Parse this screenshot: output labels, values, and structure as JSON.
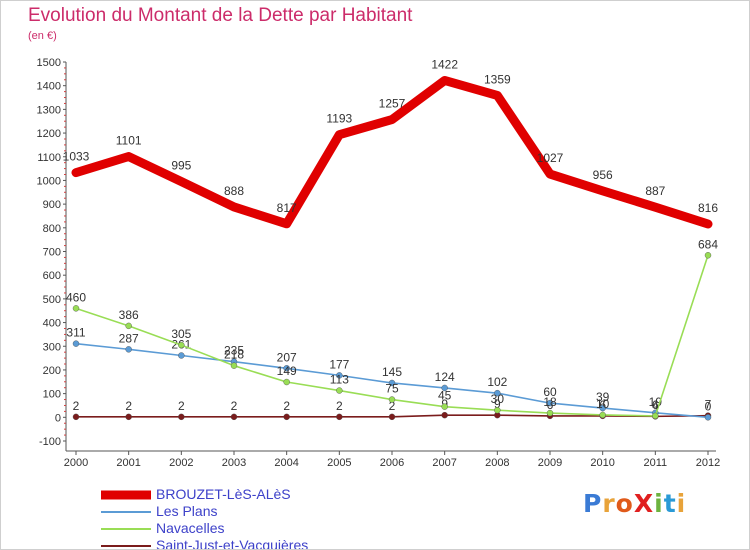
{
  "chart_data": {
    "type": "line",
    "title": "Evolution du Montant de la Dette par Habitant",
    "subtitle": "(en €)",
    "xlabel": "",
    "ylabel": "",
    "x": [
      "2000",
      "2001",
      "2002",
      "2003",
      "2004",
      "2005",
      "2006",
      "2007",
      "2008",
      "2009",
      "2010",
      "2011",
      "2012"
    ],
    "ylim": [
      -100,
      1500
    ],
    "yticks": [
      -100,
      0,
      100,
      200,
      300,
      400,
      500,
      600,
      700,
      800,
      900,
      1000,
      1100,
      1200,
      1300,
      1400,
      1500
    ],
    "grid": false,
    "legend_position": "bottom-left",
    "series": [
      {
        "name": "BROUZET-LèS-ALèS",
        "color": "#e00000",
        "style": "thick",
        "values": [
          1033,
          1101,
          995,
          888,
          817,
          1193,
          1257,
          1422,
          1359,
          1027,
          956,
          887,
          816
        ]
      },
      {
        "name": "Les Plans",
        "color": "#5b9bd5",
        "style": "thin",
        "values": [
          311,
          287,
          261,
          235,
          207,
          177,
          145,
          124,
          102,
          60,
          39,
          19,
          0
        ]
      },
      {
        "name": "Navacelles",
        "color": "#99dd55",
        "style": "thin",
        "values": [
          460,
          386,
          305,
          218,
          149,
          113,
          75,
          45,
          30,
          18,
          10,
          6,
          684
        ]
      },
      {
        "name": "Saint-Just-et-Vacquières",
        "color": "#7b1c1c",
        "style": "thin",
        "values": [
          2,
          2,
          2,
          2,
          2,
          2,
          2,
          9,
          9,
          6,
          6,
          4,
          7
        ]
      }
    ]
  },
  "logo": {
    "text": "ProXiti",
    "letter_colors": [
      "#3a7bd5",
      "#e8a33a",
      "#e05a1a",
      "#e02020",
      "#6db33f",
      "#2a9ad6",
      "#e8a33a"
    ]
  }
}
